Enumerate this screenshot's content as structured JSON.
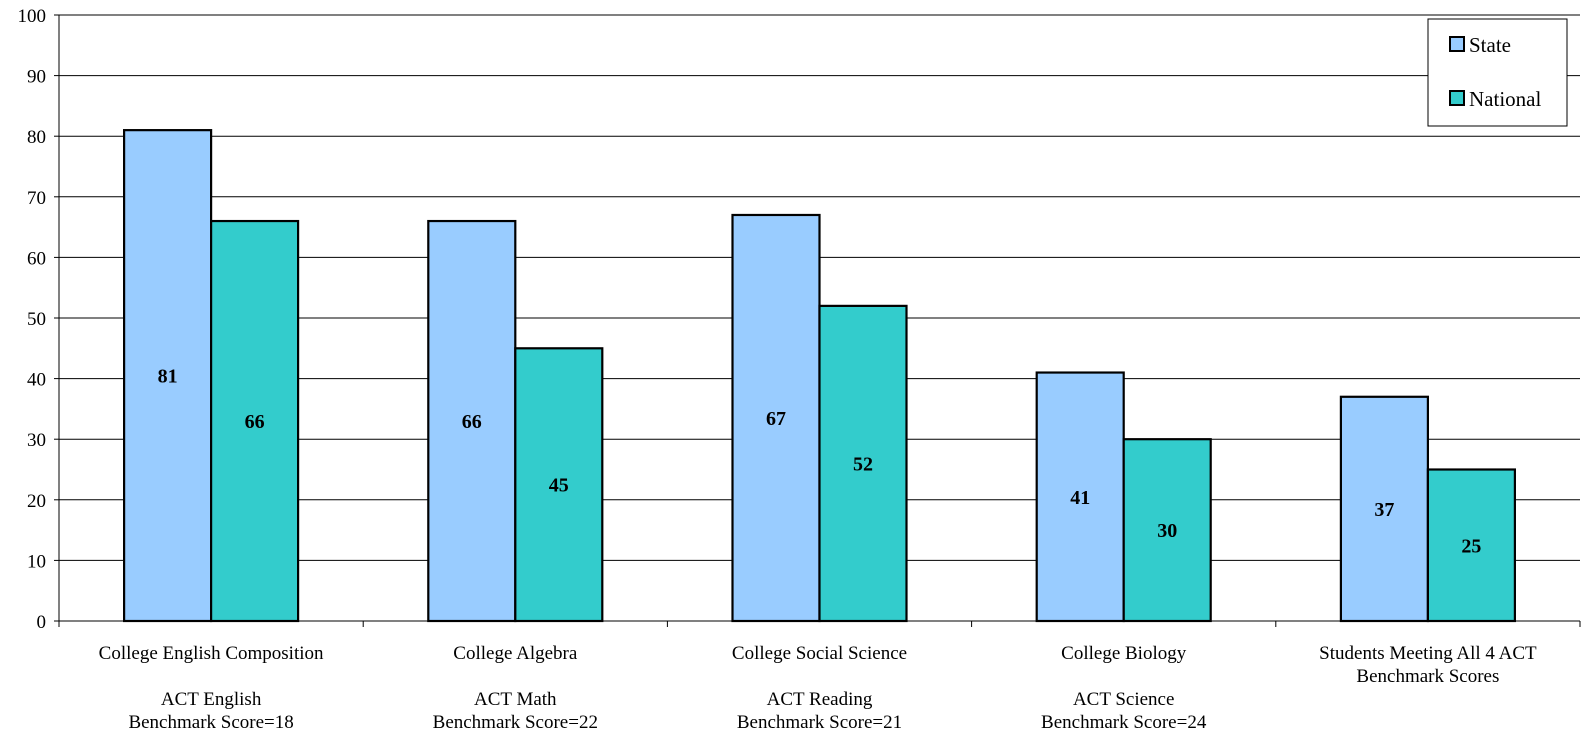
{
  "chart_data": {
    "type": "bar",
    "categories": [
      [
        "College English Composition",
        "",
        "ACT English",
        "Benchmark Score=18"
      ],
      [
        "College Algebra",
        "",
        "ACT Math",
        "Benchmark Score=22"
      ],
      [
        "College Social Science",
        "",
        "ACT Reading",
        "Benchmark Score=21"
      ],
      [
        "College Biology",
        "",
        "ACT Science",
        "Benchmark Score=24"
      ],
      [
        "Students Meeting All 4 ACT",
        "Benchmark Scores"
      ]
    ],
    "series": [
      {
        "name": "State",
        "values": [
          81,
          66,
          67,
          41,
          37
        ],
        "color": "#99ccff"
      },
      {
        "name": "National",
        "values": [
          66,
          45,
          52,
          30,
          25
        ],
        "color": "#33cccc"
      }
    ],
    "data_labels": [
      [
        "81",
        "66",
        "67",
        "41",
        "37"
      ],
      [
        "66",
        "45",
        "52",
        "30",
        "25"
      ]
    ],
    "y_ticks": [
      "0",
      "10",
      "20",
      "30",
      "40",
      "50",
      "60",
      "70",
      "80",
      "90",
      "100"
    ],
    "ylim": [
      0,
      100
    ],
    "grid": true,
    "legend_position": "top-right",
    "title": "",
    "xlabel": "",
    "ylabel": ""
  }
}
